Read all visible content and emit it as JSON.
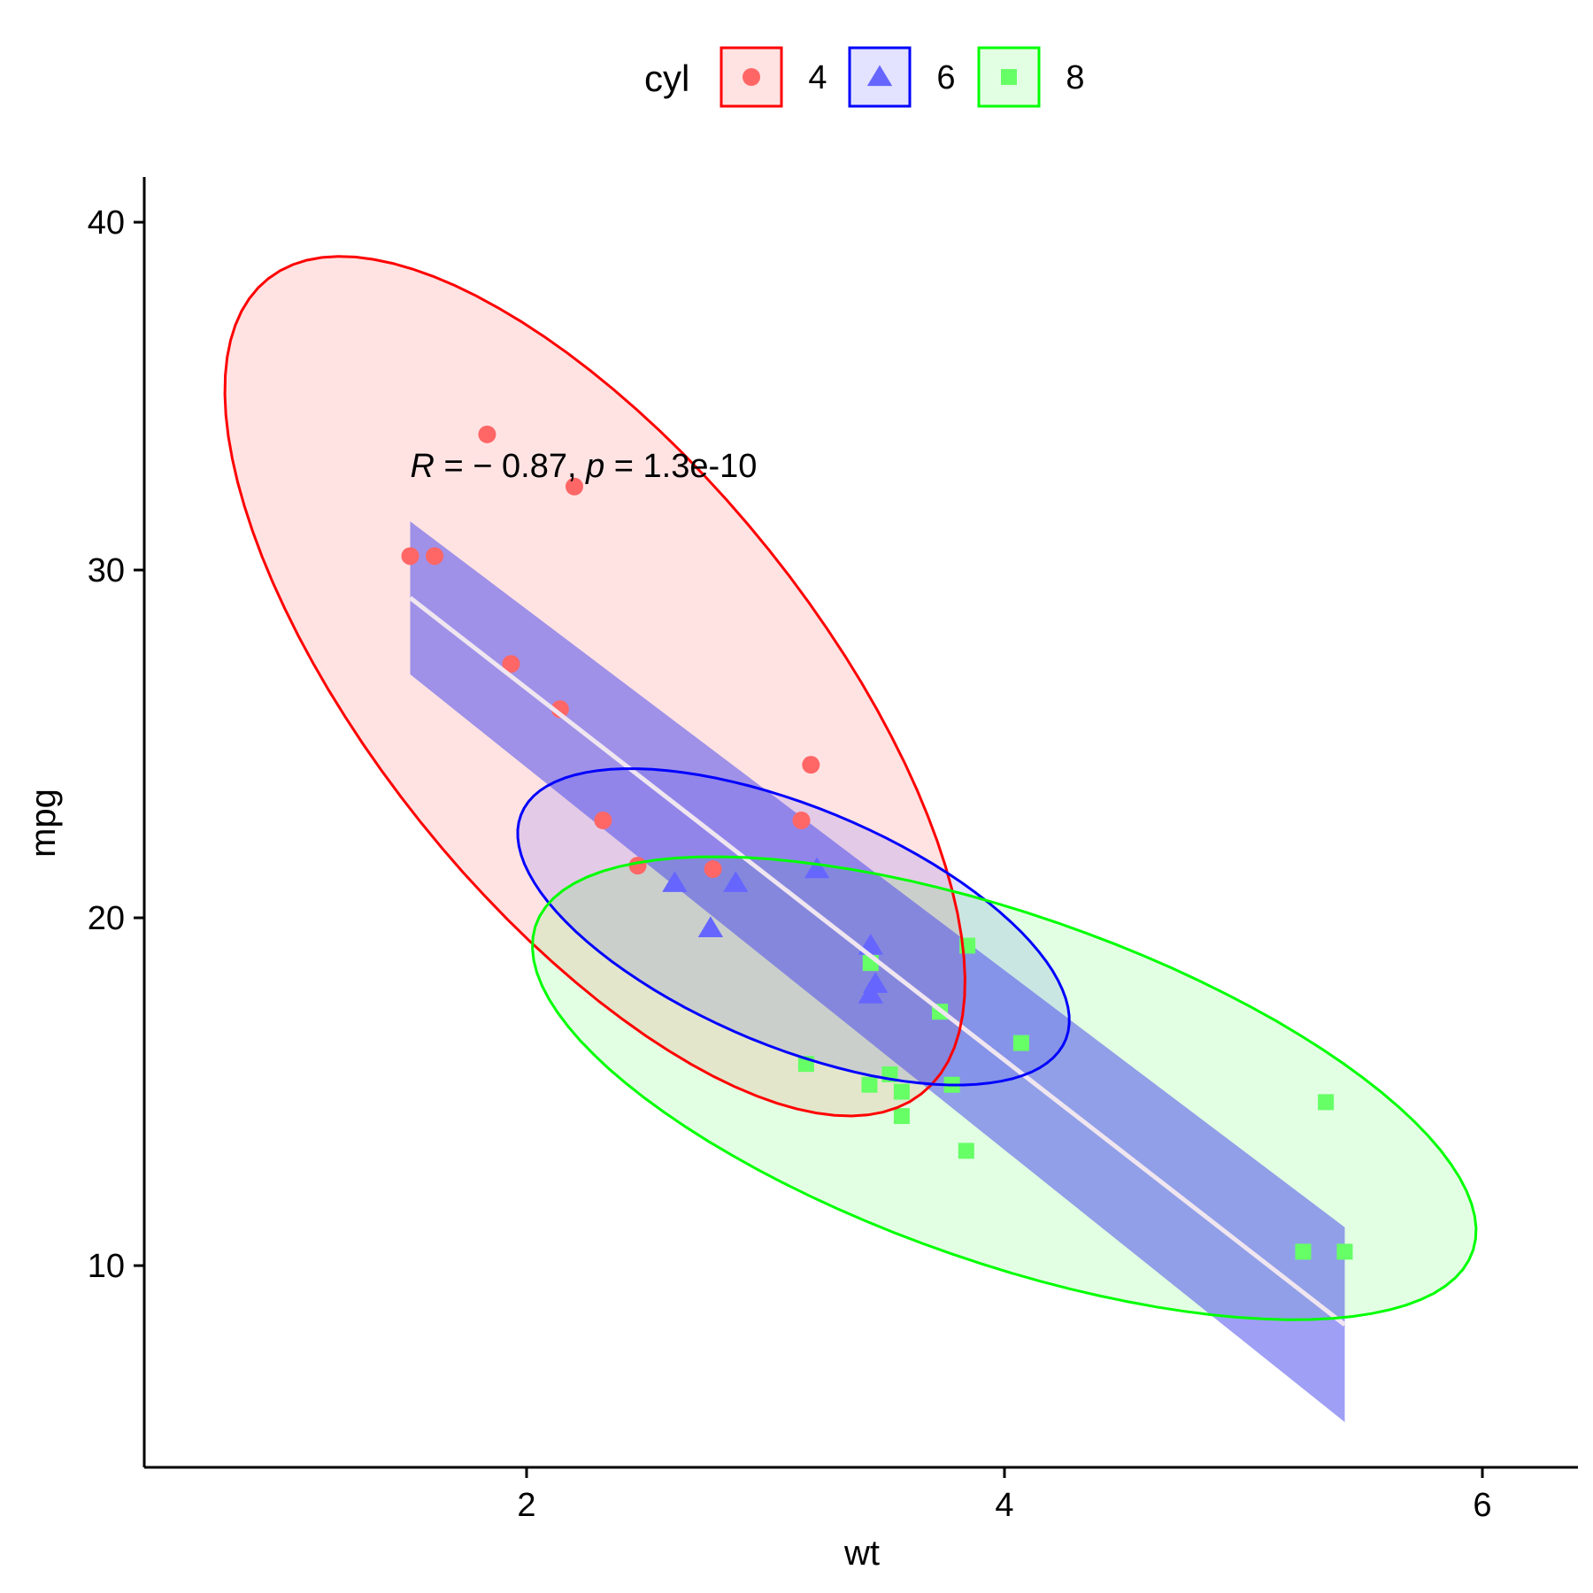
{
  "chart_data": {
    "type": "scatter",
    "xlabel": "wt",
    "ylabel": "mpg",
    "xlim": [
      0.4,
      6.4
    ],
    "ylim": [
      4.2,
      41.3
    ],
    "x_ticks": [
      2,
      4,
      6
    ],
    "y_ticks": [
      10,
      20,
      30,
      40
    ],
    "grid": false,
    "legend": {
      "title": "cyl",
      "position": "top",
      "entries": [
        {
          "label": "4",
          "color": "#ff0000",
          "fill": "#ff6666",
          "shape": "circle"
        },
        {
          "label": "6",
          "color": "#0000ff",
          "fill": "#6666ff",
          "shape": "triangle"
        },
        {
          "label": "8",
          "color": "#00ff00",
          "fill": "#66ff66",
          "shape": "square"
        }
      ]
    },
    "annotation": {
      "r_label": "R",
      "r_value": " = − 0.87, ",
      "p_label": "p",
      "p_value": " = 1.3e-10",
      "x": 1.513,
      "y": 33.0
    },
    "series": [
      {
        "name": "4",
        "color": "#ff6666",
        "shape": "circle",
        "points": [
          [
            2.32,
            22.8
          ],
          [
            3.19,
            24.4
          ],
          [
            3.15,
            22.8
          ],
          [
            2.2,
            32.4
          ],
          [
            1.615,
            30.4
          ],
          [
            1.835,
            33.9
          ],
          [
            2.465,
            21.5
          ],
          [
            1.935,
            27.3
          ],
          [
            2.14,
            26.0
          ],
          [
            1.513,
            30.4
          ],
          [
            2.78,
            21.4
          ]
        ]
      },
      {
        "name": "6",
        "color": "#6666ff",
        "shape": "triangle",
        "points": [
          [
            2.62,
            21.0
          ],
          [
            2.875,
            21.0
          ],
          [
            3.215,
            21.4
          ],
          [
            3.46,
            18.1
          ],
          [
            3.44,
            19.2
          ],
          [
            3.44,
            17.8
          ],
          [
            2.77,
            19.7
          ]
        ]
      },
      {
        "name": "8",
        "color": "#66ff66",
        "shape": "square",
        "points": [
          [
            3.44,
            18.7
          ],
          [
            3.57,
            14.3
          ],
          [
            4.07,
            16.4
          ],
          [
            3.73,
            17.3
          ],
          [
            3.78,
            15.2
          ],
          [
            5.25,
            10.4
          ],
          [
            5.424,
            10.4
          ],
          [
            5.345,
            14.7
          ],
          [
            3.52,
            15.5
          ],
          [
            3.435,
            15.2
          ],
          [
            3.84,
            13.3
          ],
          [
            3.845,
            19.2
          ],
          [
            3.17,
            15.8
          ],
          [
            3.57,
            15.0
          ]
        ]
      }
    ],
    "regression": {
      "x": [
        1.513,
        5.424
      ],
      "y": [
        29.2,
        8.3
      ],
      "band_lower": [
        27.0,
        5.5
      ],
      "band_upper": [
        31.4,
        11.1
      ],
      "line_color": "#f0e6f0",
      "band_fill": "#4040ee",
      "band_opacity": 0.5
    },
    "ellipses": [
      {
        "name": "4",
        "stroke": "#ff0000",
        "fill": "#ff0000",
        "fill_opacity": 0.11,
        "center": [
          2.286,
          26.66
        ],
        "cov": [
          [
            0.3195,
            -1.7536
          ],
          [
            -1.7536,
            20.34
          ]
        ],
        "t": 2.74
      },
      {
        "name": "6",
        "stroke": "#0000ff",
        "fill": "#0000ff",
        "fill_opacity": 0.11,
        "center": [
          3.117,
          19.74
        ],
        "cov": [
          [
            0.1343,
            -0.3125
          ],
          [
            -0.3125,
            2.085
          ]
        ],
        "t": 3.15
      },
      {
        "name": "8",
        "stroke": "#00ff00",
        "fill": "#00ff00",
        "fill_opacity": 0.11,
        "center": [
          3.999,
          15.1
        ],
        "cov": [
          [
            0.5769,
            -1.195
          ],
          [
            -1.195,
            6.554
          ]
        ],
        "t": 2.6
      }
    ]
  }
}
